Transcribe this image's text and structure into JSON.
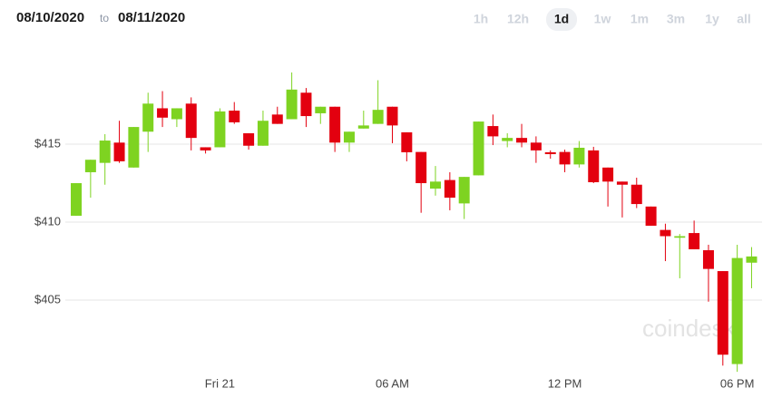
{
  "header": {
    "from": "08/10/2020",
    "to_word": "to",
    "to": "08/11/2020",
    "ranges": [
      "1h",
      "12h",
      "1d",
      "1w",
      "1m",
      "3m",
      "1y",
      "all"
    ],
    "selected": "1d"
  },
  "chart_data": {
    "type": "candlestick",
    "watermark": "coindesk",
    "up_color": "#7ed321",
    "down_color": "#e3000f",
    "grid": true,
    "categories": [
      null,
      null,
      null,
      null,
      null,
      null,
      null,
      null,
      null,
      null,
      "Fri 21",
      null,
      null,
      null,
      null,
      null,
      null,
      null,
      null,
      null,
      null,
      null,
      "06 AM",
      null,
      null,
      null,
      null,
      null,
      null,
      null,
      null,
      null,
      null,
      null,
      "12 PM",
      null,
      null,
      null,
      null,
      null,
      null,
      null,
      null,
      null,
      null,
      null,
      "06 PM",
      null
    ],
    "open": [
      410.41,
      413.2,
      413.8,
      415.1,
      413.5,
      415.8,
      417.3,
      416.6,
      417.6,
      414.8,
      414.8,
      417.15,
      415.7,
      414.9,
      416.9,
      416.6,
      418.3,
      416.98,
      417.4,
      415.1,
      416.0,
      416.3,
      417.4,
      415.76,
      414.5,
      412.15,
      412.7,
      411.2,
      413.0,
      416.16,
      415.2,
      415.4,
      415.1,
      414.48,
      414.5,
      413.7,
      414.6,
      413.5,
      412.6,
      412.4,
      411.0,
      409.5,
      409.0,
      409.3,
      408.2,
      406.86,
      400.9,
      407.4
    ],
    "high": [
      412.5,
      414.0,
      415.64,
      416.5,
      416.1,
      418.3,
      418.4,
      417.3,
      418.0,
      414.8,
      417.3,
      417.7,
      415.7,
      417.15,
      417.4,
      419.6,
      418.6,
      417.4,
      417.4,
      415.8,
      417.15,
      419.1,
      417.4,
      415.76,
      414.5,
      413.6,
      413.2,
      412.9,
      416.45,
      416.9,
      415.7,
      416.3,
      415.5,
      414.6,
      414.65,
      415.2,
      414.83,
      413.5,
      412.6,
      412.85,
      411.0,
      409.9,
      409.24,
      410.1,
      408.55,
      406.86,
      408.55,
      408.4
    ],
    "low": [
      410.4,
      411.57,
      412.4,
      413.8,
      413.5,
      414.5,
      416.1,
      416.1,
      414.6,
      414.4,
      414.8,
      416.3,
      414.65,
      414.9,
      416.3,
      416.6,
      416.1,
      416.3,
      414.5,
      414.5,
      416.0,
      416.3,
      415.06,
      413.9,
      410.6,
      411.7,
      410.76,
      410.2,
      413.0,
      414.94,
      414.8,
      414.8,
      413.8,
      414.07,
      413.2,
      413.5,
      412.5,
      411.0,
      410.3,
      410.9,
      409.77,
      407.5,
      406.4,
      408.26,
      404.9,
      400.8,
      400.4,
      405.76
    ],
    "close": [
      412.5,
      414.0,
      415.23,
      413.9,
      416.1,
      417.6,
      416.7,
      417.3,
      415.4,
      414.6,
      417.1,
      416.4,
      414.9,
      416.5,
      416.3,
      418.5,
      416.8,
      417.4,
      415.1,
      415.8,
      416.2,
      417.2,
      416.2,
      414.48,
      412.5,
      412.6,
      411.57,
      412.9,
      416.45,
      415.5,
      415.4,
      415.1,
      414.6,
      414.36,
      413.7,
      414.77,
      412.56,
      412.6,
      412.4,
      411.16,
      409.77,
      409.1,
      409.1,
      408.26,
      407.0,
      401.5,
      407.7,
      407.8
    ],
    "ylim": [
      400.2,
      421
    ],
    "yticks": [
      {
        "value": 405,
        "label": "$405"
      },
      {
        "value": 410,
        "label": "$410"
      },
      {
        "value": 415,
        "label": "$415"
      }
    ]
  }
}
